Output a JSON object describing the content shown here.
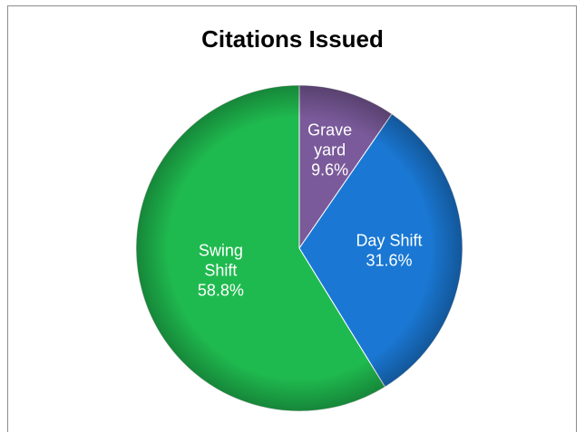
{
  "chart_data": {
    "type": "pie",
    "title": "Citations Issued",
    "slices": [
      {
        "label_lines": [
          "Grave",
          "yard",
          "9.6%"
        ],
        "value": 9.6,
        "color": "#7a5a9a"
      },
      {
        "label_lines": [
          "Day Shift",
          "31.6%"
        ],
        "value": 31.6,
        "color": "#1a78d4"
      },
      {
        "label_lines": [
          "Swing",
          "Shift",
          "58.8%"
        ],
        "value": 58.8,
        "color": "#1fba4f"
      }
    ],
    "legend": "none",
    "start": "top, clockwise"
  }
}
